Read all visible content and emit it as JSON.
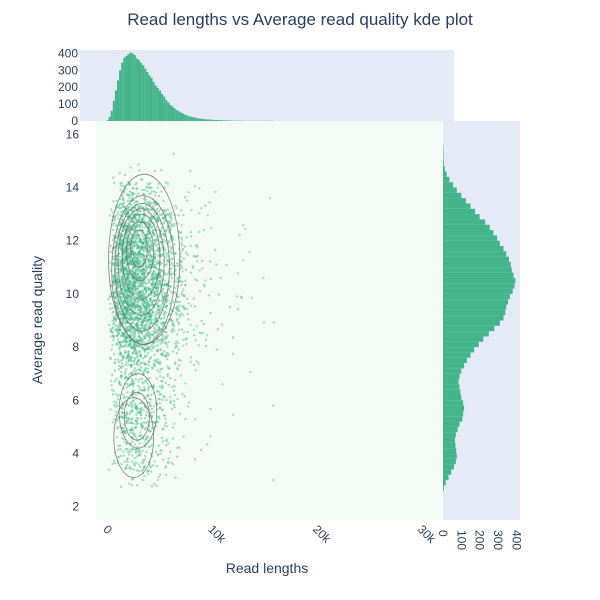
{
  "chart_data": {
    "type": "scatter",
    "title": "Read lengths vs Average read quality kde plot",
    "xlabel": "Read lengths",
    "ylabel": "Average read quality",
    "xlim": [
      -1000,
      32000
    ],
    "ylim": [
      1.5,
      16.5
    ],
    "x_ticks": [
      {
        "value": 0,
        "label": "0"
      },
      {
        "value": 10000,
        "label": "10k"
      },
      {
        "value": 20000,
        "label": "20k"
      },
      {
        "value": 30000,
        "label": "30k"
      }
    ],
    "y_ticks": [
      {
        "value": 2,
        "label": "2"
      },
      {
        "value": 4,
        "label": "4"
      },
      {
        "value": 6,
        "label": "6"
      },
      {
        "value": 8,
        "label": "8"
      },
      {
        "value": 10,
        "label": "10"
      },
      {
        "value": 12,
        "label": "12"
      },
      {
        "value": 14,
        "label": "14"
      },
      {
        "value": 16,
        "label": "16"
      }
    ],
    "marginal_top": {
      "type": "histogram",
      "ylim": [
        0,
        420
      ],
      "ticks": [
        {
          "value": 0,
          "label": "0"
        },
        {
          "value": 100,
          "label": "100"
        },
        {
          "value": 200,
          "label": "200"
        },
        {
          "value": 300,
          "label": "300"
        },
        {
          "value": 400,
          "label": "400"
        }
      ],
      "bin_start": 0,
      "bin_width": 200,
      "counts": [
        5,
        25,
        60,
        120,
        180,
        240,
        300,
        345,
        375,
        385,
        395,
        405,
        400,
        390,
        370,
        360,
        345,
        330,
        310,
        290,
        270,
        255,
        230,
        210,
        195,
        180,
        160,
        145,
        125,
        110,
        95,
        85,
        75,
        65,
        58,
        50,
        44,
        38,
        33,
        28,
        25,
        22,
        19,
        17,
        15,
        13,
        11,
        10,
        9,
        8,
        7,
        6,
        6,
        5,
        5,
        4,
        4,
        3,
        3,
        3,
        2,
        2,
        2,
        2,
        2,
        1,
        1,
        1,
        1,
        1,
        1,
        1,
        1,
        1,
        1,
        1,
        1,
        1,
        1,
        1
      ]
    },
    "marginal_right": {
      "type": "histogram",
      "xlim": [
        0,
        420
      ],
      "ticks": [
        {
          "value": 0,
          "label": "0"
        },
        {
          "value": 100,
          "label": "100"
        },
        {
          "value": 200,
          "label": "200"
        },
        {
          "value": 300,
          "label": "300"
        },
        {
          "value": 400,
          "label": "400"
        }
      ],
      "bin_start": 2.6,
      "bin_width": 0.2,
      "counts": [
        5,
        15,
        30,
        45,
        60,
        70,
        75,
        72,
        68,
        65,
        70,
        80,
        90,
        105,
        110,
        115,
        110,
        100,
        95,
        90,
        85,
        90,
        100,
        115,
        130,
        150,
        170,
        195,
        220,
        250,
        280,
        310,
        330,
        340,
        345,
        355,
        365,
        380,
        390,
        395,
        385,
        375,
        370,
        360,
        345,
        330,
        310,
        295,
        275,
        255,
        230,
        200,
        175,
        150,
        125,
        100,
        75,
        55,
        35,
        20,
        10,
        5,
        3,
        3,
        2
      ]
    },
    "colors": {
      "marker": "#44b58b",
      "contour": "#666666",
      "main_bg": "#f4fbf4",
      "marginal_bg": "#e5ebf6",
      "text": "#2a3f5f"
    }
  }
}
